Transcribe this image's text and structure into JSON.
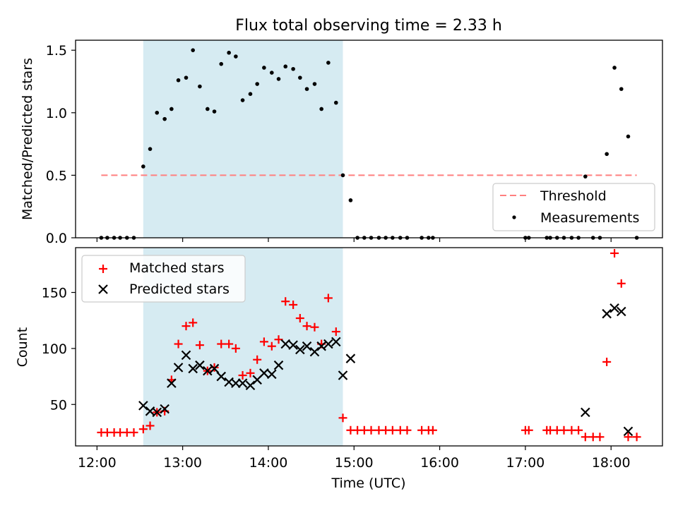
{
  "title": "Flux total observing time = 2.33 h",
  "colors": {
    "shade": "#add8e6",
    "threshold": "#ff7f7f",
    "measurement": "#000000",
    "matched": "#ff0000",
    "predicted": "#000000"
  },
  "chart_data": [
    {
      "type": "scatter",
      "ylabel": "Matched/Predicted stars",
      "xlabel": "",
      "xlim": [
        11.75,
        18.6
      ],
      "ylim": [
        0,
        1.58
      ],
      "yticks": [
        0.0,
        0.5,
        1.0,
        1.5
      ],
      "ytick_labels": [
        "0.0",
        "0.5",
        "1.0",
        "1.5"
      ],
      "shaded_span": [
        12.54,
        14.87
      ],
      "legend": {
        "placement": "lower-right",
        "entries": [
          {
            "label": "Threshold",
            "kind": "dashed-line"
          },
          {
            "label": "Measurements",
            "kind": "dot"
          }
        ]
      },
      "threshold": {
        "name": "Threshold",
        "y": 0.5,
        "x": [
          12.05,
          18.3
        ]
      },
      "series": [
        {
          "name": "Measurements",
          "x": [
            12.05,
            12.12,
            12.2,
            12.27,
            12.35,
            12.43,
            12.54,
            12.62,
            12.7,
            12.79,
            12.87,
            12.95,
            13.04,
            13.12,
            13.2,
            13.29,
            13.37,
            13.45,
            13.54,
            13.62,
            13.7,
            13.79,
            13.87,
            13.95,
            14.04,
            14.12,
            14.2,
            14.29,
            14.37,
            14.45,
            14.54,
            14.62,
            14.7,
            14.79,
            14.87,
            14.96,
            15.04,
            15.12,
            15.2,
            15.29,
            15.37,
            15.45,
            15.54,
            15.62,
            15.79,
            15.87,
            15.92,
            17.0,
            17.04,
            17.25,
            17.29,
            17.37,
            17.45,
            17.54,
            17.62,
            17.7,
            17.79,
            17.87,
            17.95,
            18.04,
            18.12,
            18.2,
            18.3
          ],
          "y": [
            0,
            0,
            0,
            0,
            0,
            0,
            0.57,
            0.71,
            1.0,
            0.95,
            1.03,
            1.26,
            1.28,
            1.5,
            1.21,
            1.03,
            1.01,
            1.39,
            1.48,
            1.45,
            1.1,
            1.15,
            1.23,
            1.36,
            1.32,
            1.27,
            1.37,
            1.35,
            1.28,
            1.19,
            1.23,
            1.03,
            1.4,
            1.08,
            0.5,
            0.3,
            0,
            0,
            0,
            0,
            0,
            0,
            0,
            0,
            0,
            0,
            0,
            0,
            0,
            0,
            0,
            0,
            0,
            0,
            0,
            0.49,
            0,
            0,
            0.67,
            1.36,
            1.19,
            0.81,
            0
          ]
        }
      ]
    },
    {
      "type": "scatter",
      "xlabel": "Time (UTC)",
      "ylabel": "Count",
      "xlim": [
        11.75,
        18.6
      ],
      "ylim": [
        13,
        190
      ],
      "xticks": [
        12,
        13,
        14,
        15,
        16,
        17,
        18
      ],
      "xtick_labels": [
        "12:00",
        "13:00",
        "14:00",
        "15:00",
        "16:00",
        "17:00",
        "18:00"
      ],
      "yticks": [
        50,
        100,
        150
      ],
      "ytick_labels": [
        "50",
        "100",
        "150"
      ],
      "shaded_span": [
        12.54,
        14.87
      ],
      "legend": {
        "placement": "upper-left",
        "entries": [
          {
            "label": "Matched stars",
            "kind": "plus"
          },
          {
            "label": "Predicted stars",
            "kind": "x"
          }
        ]
      },
      "series": [
        {
          "name": "Matched stars",
          "x": [
            12.05,
            12.12,
            12.2,
            12.27,
            12.35,
            12.43,
            12.54,
            12.62,
            12.7,
            12.79,
            12.87,
            12.95,
            13.04,
            13.12,
            13.2,
            13.29,
            13.37,
            13.45,
            13.54,
            13.62,
            13.7,
            13.79,
            13.87,
            13.95,
            14.04,
            14.12,
            14.2,
            14.29,
            14.37,
            14.45,
            14.54,
            14.62,
            14.7,
            14.79,
            14.87,
            14.96,
            15.04,
            15.12,
            15.2,
            15.29,
            15.37,
            15.45,
            15.54,
            15.62,
            15.79,
            15.87,
            15.92,
            17.0,
            17.04,
            17.25,
            17.29,
            17.37,
            17.45,
            17.54,
            17.62,
            17.7,
            17.79,
            17.87,
            17.95,
            18.04,
            18.12,
            18.2,
            18.3
          ],
          "y": [
            25,
            25,
            25,
            25,
            25,
            25,
            28,
            31,
            43,
            44,
            72,
            104,
            120,
            123,
            103,
            80,
            83,
            104,
            104,
            100,
            76,
            78,
            90,
            106,
            102,
            108,
            142,
            139,
            127,
            120,
            119,
            104,
            145,
            115,
            38,
            27,
            27,
            27,
            27,
            27,
            27,
            27,
            27,
            27,
            27,
            27,
            27,
            27,
            27,
            27,
            27,
            27,
            27,
            27,
            27,
            21,
            21,
            21,
            88,
            185,
            158,
            21,
            21
          ]
        },
        {
          "name": "Predicted stars",
          "x": [
            12.54,
            12.62,
            12.7,
            12.79,
            12.87,
            12.95,
            13.04,
            13.12,
            13.2,
            13.29,
            13.37,
            13.45,
            13.54,
            13.62,
            13.7,
            13.79,
            13.87,
            13.95,
            14.04,
            14.12,
            14.2,
            14.29,
            14.37,
            14.45,
            14.54,
            14.62,
            14.7,
            14.79,
            14.87,
            14.96,
            17.7,
            17.95,
            18.04,
            18.12,
            18.2
          ],
          "y": [
            49,
            44,
            43,
            46,
            69,
            83,
            94,
            82,
            85,
            80,
            82,
            75,
            70,
            69,
            69,
            67,
            72,
            78,
            77,
            85,
            104,
            103,
            99,
            102,
            97,
            102,
            104,
            106,
            76,
            91,
            43,
            131,
            136,
            133,
            26
          ]
        }
      ]
    }
  ]
}
